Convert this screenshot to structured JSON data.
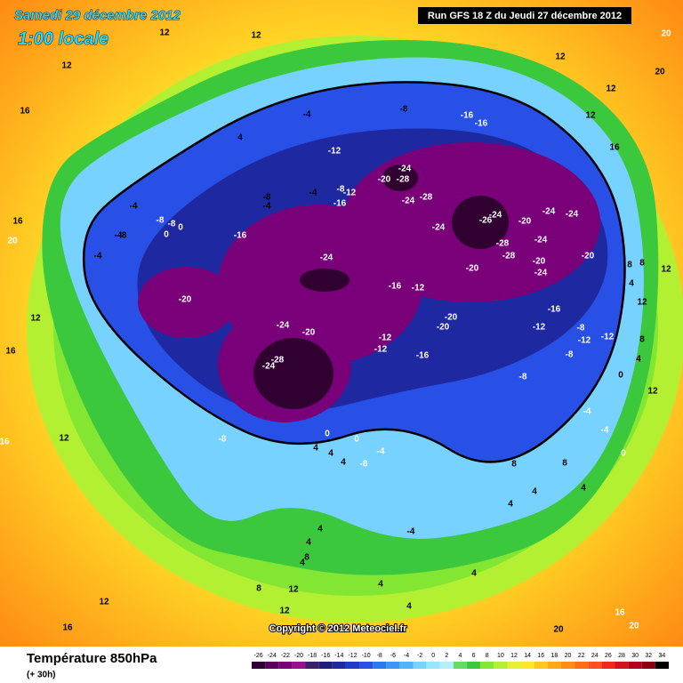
{
  "header": {
    "date": "Samedi 29 décembre 2012",
    "time": "1:00 locale",
    "run": "Run GFS 18 Z du Jeudi 27 décembre 2012"
  },
  "copyright": "Copyright © 2012 Meteociel.fr",
  "footer": {
    "title": "Température 850hPa",
    "lead": "(+ 30h)"
  },
  "legend": {
    "values": [
      -26,
      -24,
      -22,
      -20,
      -18,
      -16,
      -14,
      -12,
      -10,
      -8,
      -6,
      -4,
      -2,
      0,
      2,
      4,
      6,
      8,
      10,
      12,
      14,
      16,
      18,
      20,
      22,
      24,
      26,
      28,
      30,
      32,
      34
    ],
    "colors": [
      "#300030",
      "#5a005a",
      "#7a007a",
      "#96108c",
      "#3c1e6e",
      "#1e1e78",
      "#1e28a0",
      "#1e3cc8",
      "#2850e6",
      "#2878f0",
      "#3c96f5",
      "#50b4fa",
      "#78d2ff",
      "#96e6ff",
      "#b4f0fa",
      "#64dc64",
      "#3cc83c",
      "#82e632",
      "#b4f032",
      "#e6f032",
      "#ffe628",
      "#ffc81e",
      "#ffaa14",
      "#ff8c14",
      "#ff6e14",
      "#ff501e",
      "#f0281e",
      "#d2141e",
      "#b4001e",
      "#8c0014",
      "#000000"
    ]
  },
  "map_labels": [
    "-24",
    "-28",
    "-24",
    "-20",
    "-24",
    "-20",
    "-16",
    "-12",
    "-20",
    "-28",
    "-24",
    "-24",
    "-28",
    "-24",
    "-26",
    "-24",
    "-20",
    "-24",
    "-24",
    "-28",
    "-28",
    "-24",
    "-20",
    "-24",
    "-20",
    "-20",
    "-16",
    "-12",
    "-8",
    "-12",
    "-12",
    "-8",
    "-8",
    "-12",
    "-12",
    "-16",
    "-20",
    "-20",
    "-16",
    "-12",
    "-16",
    "-16",
    "-8",
    "-4",
    "-8",
    "-4",
    "-8",
    "-12",
    "-16",
    "-4",
    "-8",
    "-8",
    "-4",
    "-4",
    "-8",
    "-4",
    "0",
    "0",
    "4",
    "-8",
    "-8",
    "0",
    "0",
    "-4",
    "4",
    "4",
    "4",
    "-4",
    "4",
    "4",
    "8",
    "4",
    "8",
    "12",
    "12",
    "12",
    "16",
    "4",
    "4",
    "4",
    "4",
    "4",
    "8",
    "8",
    "4",
    "0",
    "-4",
    "-4",
    "0",
    "4",
    "4",
    "8",
    "8",
    "12",
    "12",
    "12",
    "8",
    "12",
    "16",
    "12",
    "20",
    "20",
    "12",
    "12",
    "12",
    "16",
    "16",
    "20",
    "12",
    "12",
    "16",
    "16",
    "12",
    "20",
    "20",
    "16"
  ]
}
